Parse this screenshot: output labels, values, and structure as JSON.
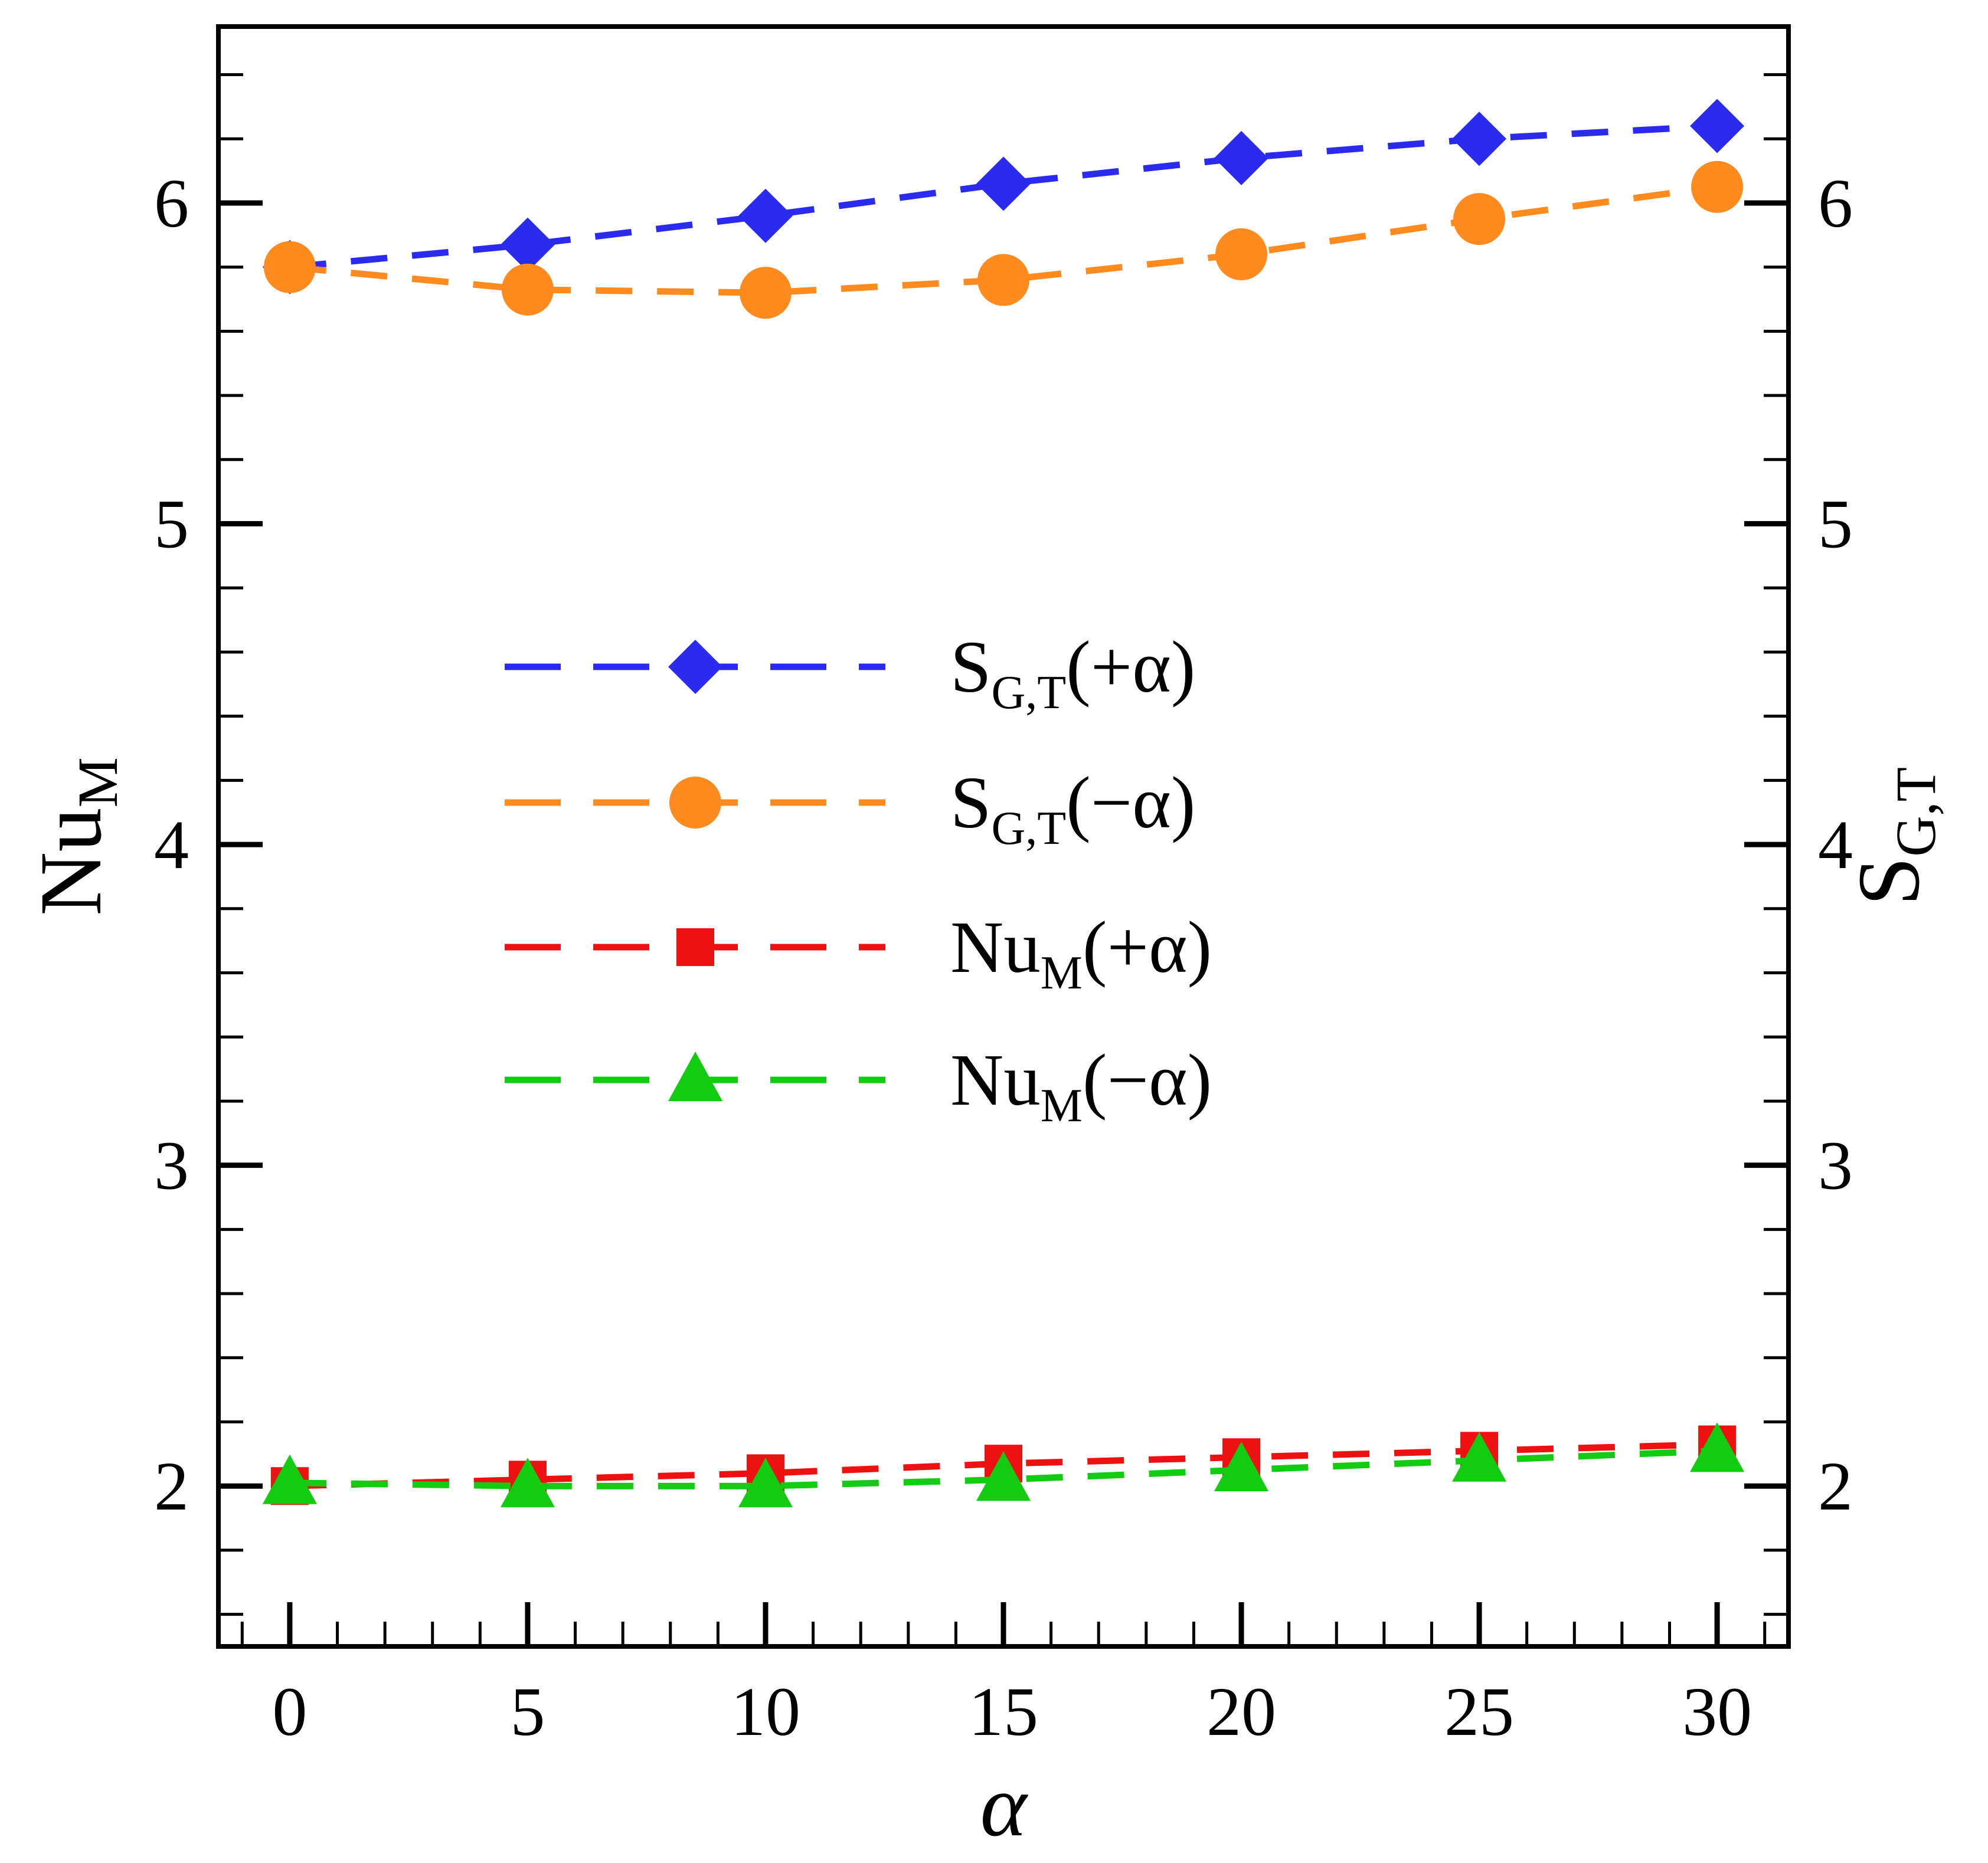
{
  "chart_data": {
    "type": "line",
    "x": [
      0,
      5,
      10,
      15,
      20,
      25,
      30
    ],
    "xlabel": "α",
    "ylabel_left": {
      "main": "Nu",
      "sub": "M"
    },
    "ylabel_right": {
      "main": "S",
      "sub": "G,T"
    },
    "xlim": [
      -1.5,
      31.5
    ],
    "ylim": [
      1.5,
      6.55
    ],
    "x_ticks": [
      "0",
      "5",
      "10",
      "15",
      "20",
      "25",
      "30"
    ],
    "y_ticks": [
      "2",
      "3",
      "4",
      "5",
      "6"
    ],
    "legend_position": "center-left",
    "series": [
      {
        "name": "S_G,T(+α)",
        "label_main": "S",
        "label_sub": "G,T",
        "label_tail": "(+α)",
        "color": "#2b2bf0",
        "marker": "diamond",
        "values": [
          5.8,
          5.87,
          5.96,
          6.06,
          6.14,
          6.2,
          6.24
        ]
      },
      {
        "name": "S_G,T(−α)",
        "label_main": "S",
        "label_sub": "G,T",
        "label_tail": "(−α)",
        "color": "#ff8a1e",
        "marker": "circle",
        "values": [
          5.8,
          5.73,
          5.72,
          5.76,
          5.84,
          5.95,
          6.05
        ]
      },
      {
        "name": "Nu_M(+α)",
        "label_main": "Nu",
        "label_sub": "M",
        "label_tail": "(+α)",
        "color": "#ee1111",
        "marker": "square",
        "values": [
          2.0,
          2.02,
          2.04,
          2.07,
          2.09,
          2.11,
          2.13
        ]
      },
      {
        "name": "Nu_M(−α)",
        "label_main": "Nu",
        "label_sub": "M",
        "label_tail": "(−α)",
        "color": "#11cc11",
        "marker": "triangle",
        "values": [
          2.01,
          2.0,
          2.0,
          2.02,
          2.05,
          2.08,
          2.11
        ]
      }
    ]
  }
}
